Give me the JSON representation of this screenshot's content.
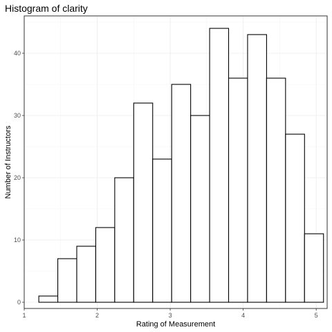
{
  "chart_data": {
    "type": "bar",
    "title": "Histogram of clarity",
    "xlabel": "Rating of Measurement",
    "ylabel": "Number of Instructors",
    "bin_edges": [
      1.2,
      1.46,
      1.72,
      1.98,
      2.24,
      2.5,
      2.76,
      3.02,
      3.28,
      3.54,
      3.8,
      4.06,
      4.32,
      4.58,
      4.84,
      5.1
    ],
    "values": [
      1,
      7,
      9,
      12,
      20,
      32,
      23,
      35,
      30,
      44,
      36,
      43,
      36,
      27,
      11
    ],
    "xlim": [
      1,
      5.15
    ],
    "ylim": [
      -1,
      46
    ],
    "x_ticks": [
      1,
      2,
      3,
      4,
      5
    ],
    "y_ticks": [
      0,
      10,
      20,
      30,
      40
    ],
    "grid": true,
    "colors": {
      "bar_fill": "#ffffff",
      "bar_stroke": "#000000",
      "grid": "#ebebeb"
    }
  }
}
